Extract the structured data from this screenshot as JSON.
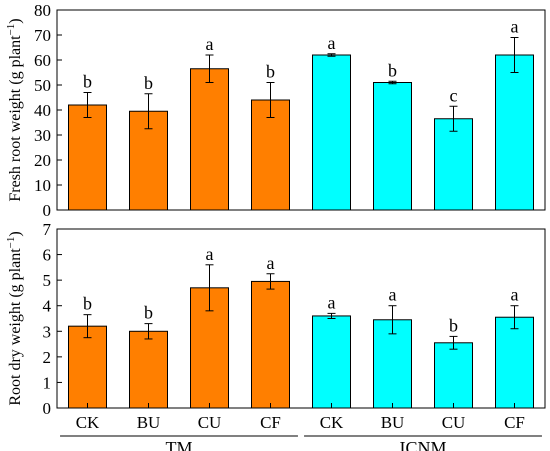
{
  "chart_data": [
    {
      "type": "bar",
      "ylabel": "Fresh root weight",
      "ylabel_unit": "(g plant",
      "ylabel_exp": "−1",
      "ylabel_close": ")",
      "ylim": [
        0,
        80
      ],
      "yticks": [
        "0",
        "10",
        "20",
        "30",
        "40",
        "50",
        "60",
        "70",
        "80"
      ],
      "categories": [
        "CK",
        "BU",
        "CU",
        "CF",
        "CK",
        "BU",
        "CU",
        "CF"
      ],
      "groups": [
        {
          "name": "TM",
          "color": "#ff7f00"
        },
        {
          "name": "ICNM",
          "color": "#00ffff"
        }
      ],
      "values": [
        42,
        39.5,
        56.5,
        44,
        62,
        51,
        36.5,
        62
      ],
      "errors": [
        5,
        7,
        5.5,
        7,
        0.5,
        0.5,
        5,
        7
      ],
      "labels": [
        "b",
        "b",
        "a",
        "b",
        "a",
        "b",
        "c",
        "a"
      ]
    },
    {
      "type": "bar",
      "ylabel": "Root dry weight",
      "ylabel_unit": "(g plant",
      "ylabel_exp": "−1",
      "ylabel_close": ")",
      "ylim": [
        0,
        7
      ],
      "yticks": [
        "0",
        "1",
        "2",
        "3",
        "4",
        "5",
        "6",
        "7"
      ],
      "categories": [
        "CK",
        "BU",
        "CU",
        "CF",
        "CK",
        "BU",
        "CU",
        "CF"
      ],
      "groups": [
        {
          "name": "TM",
          "color": "#ff7f00"
        },
        {
          "name": "ICNM",
          "color": "#00ffff"
        }
      ],
      "values": [
        3.2,
        3.0,
        4.7,
        4.95,
        3.6,
        3.45,
        2.55,
        3.55
      ],
      "errors": [
        0.45,
        0.3,
        0.9,
        0.3,
        0.1,
        0.55,
        0.25,
        0.45
      ],
      "labels": [
        "b",
        "b",
        "a",
        "a",
        "a",
        "a",
        "b",
        "a"
      ]
    }
  ],
  "group_labels": [
    "TM",
    "ICNM"
  ]
}
